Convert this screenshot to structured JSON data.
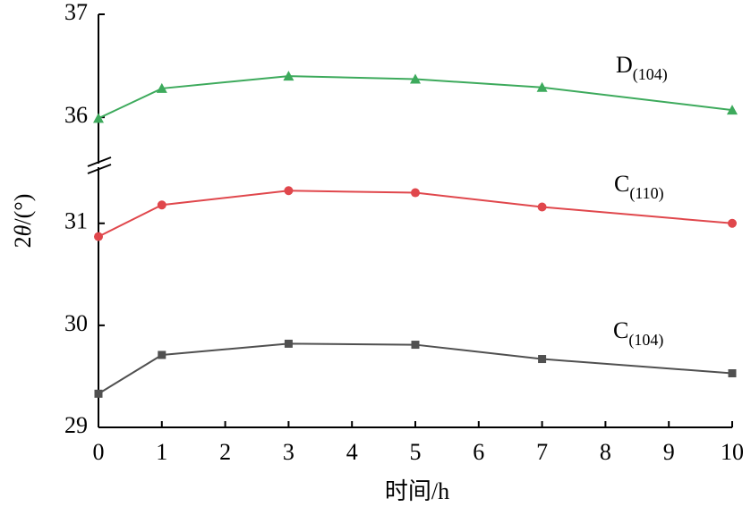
{
  "chart_data": {
    "type": "line",
    "x_label": "时间/h",
    "y_label": [
      "2",
      "θ",
      "/(°)"
    ],
    "x": [
      0,
      1,
      3,
      5,
      7,
      10
    ],
    "xlim": [
      0,
      10
    ],
    "xticks": [
      0,
      1,
      2,
      3,
      4,
      5,
      6,
      7,
      8,
      9,
      10
    ],
    "ylim": [
      29,
      37
    ],
    "ybreak": [
      31.55,
      35.55
    ],
    "yticks": [
      29,
      30,
      31,
      36,
      37
    ],
    "series": [
      {
        "name": "D",
        "name_sub": "(104)",
        "color": "#3daa5c",
        "marker": "triangle",
        "values": [
          35.99,
          36.28,
          36.4,
          36.37,
          36.29,
          36.07
        ]
      },
      {
        "name": "C",
        "name_sub": "(110)",
        "color": "#e0474c",
        "marker": "circle",
        "values": [
          30.87,
          31.18,
          31.32,
          31.3,
          31.16,
          31.0
        ]
      },
      {
        "name": "C",
        "name_sub": "(104)",
        "color": "#505050",
        "marker": "square",
        "values": [
          29.33,
          29.71,
          29.82,
          29.81,
          29.67,
          29.53
        ]
      }
    ]
  }
}
